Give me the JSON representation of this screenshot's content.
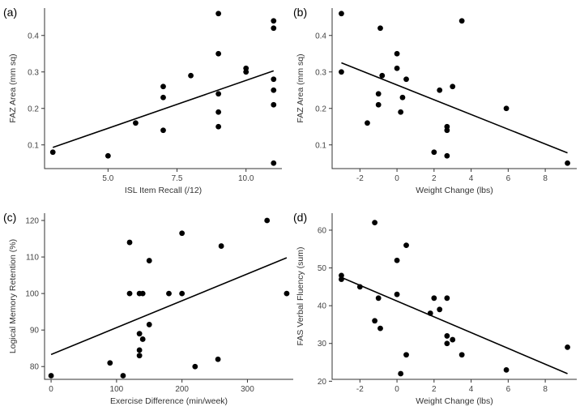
{
  "chart_data": [
    {
      "type": "scatter",
      "label": "(a)",
      "xlabel": "ISL Item Recall (/12)",
      "ylabel": "FAZ Area (mm sq)",
      "xlim": [
        2.7,
        11.3
      ],
      "ylim": [
        0.035,
        0.475
      ],
      "xticks": [
        5.0,
        7.5,
        10.0
      ],
      "xtick_labels": [
        "5.0",
        "7.5",
        "10.0"
      ],
      "yticks": [
        0.1,
        0.2,
        0.3,
        0.4
      ],
      "ytick_labels": [
        "0.1",
        "0.2",
        "0.3",
        "0.4"
      ],
      "points": [
        [
          3,
          0.08
        ],
        [
          5,
          0.07
        ],
        [
          6,
          0.16
        ],
        [
          7,
          0.26
        ],
        [
          7,
          0.23
        ],
        [
          7,
          0.14
        ],
        [
          8,
          0.29
        ],
        [
          9,
          0.46
        ],
        [
          9,
          0.35
        ],
        [
          9,
          0.24
        ],
        [
          9,
          0.19
        ],
        [
          9,
          0.15
        ],
        [
          10,
          0.31
        ],
        [
          10,
          0.3
        ],
        [
          11,
          0.44
        ],
        [
          11,
          0.42
        ],
        [
          11,
          0.28
        ],
        [
          11,
          0.25
        ],
        [
          11,
          0.21
        ],
        [
          11,
          0.05
        ]
      ],
      "fit": [
        [
          3,
          0.093
        ],
        [
          11,
          0.303
        ]
      ]
    },
    {
      "type": "scatter",
      "label": "(b)",
      "xlabel": "Weight Change (lbs)",
      "ylabel": "FAZ Area (mm sq)",
      "xlim": [
        -3.5,
        9.7
      ],
      "ylim": [
        0.035,
        0.475
      ],
      "xticks": [
        -2,
        0,
        2,
        4,
        6,
        8
      ],
      "xtick_labels": [
        "-2",
        "0",
        "2",
        "4",
        "6",
        "8"
      ],
      "yticks": [
        0.1,
        0.2,
        0.3,
        0.4
      ],
      "ytick_labels": [
        "0.1",
        "0.2",
        "0.3",
        "0.4"
      ],
      "points": [
        [
          -3,
          0.46
        ],
        [
          -3,
          0.3
        ],
        [
          -0.9,
          0.42
        ],
        [
          3.5,
          0.44
        ],
        [
          0,
          0.35
        ],
        [
          0,
          0.31
        ],
        [
          -0.8,
          0.29
        ],
        [
          0.5,
          0.28
        ],
        [
          3,
          0.26
        ],
        [
          2.3,
          0.25
        ],
        [
          -1,
          0.24
        ],
        [
          0.3,
          0.23
        ],
        [
          -1,
          0.21
        ],
        [
          5.9,
          0.2
        ],
        [
          0.2,
          0.19
        ],
        [
          -1.6,
          0.16
        ],
        [
          2.7,
          0.15
        ],
        [
          2.7,
          0.14
        ],
        [
          2,
          0.08
        ],
        [
          2.7,
          0.07
        ],
        [
          9.2,
          0.05
        ]
      ],
      "fit": [
        [
          -3,
          0.325
        ],
        [
          9.2,
          0.078
        ]
      ]
    },
    {
      "type": "scatter",
      "label": "(c)",
      "xlabel": "Exercise Difference (min/week)",
      "ylabel": "Logical Memory Retention (%)",
      "xlim": [
        -10,
        370
      ],
      "ylim": [
        76.5,
        122
      ],
      "xticks": [
        0,
        100,
        200,
        300
      ],
      "xtick_labels": [
        "0",
        "100",
        "200",
        "300"
      ],
      "yticks": [
        80,
        90,
        100,
        110,
        120
      ],
      "ytick_labels": [
        "80",
        "90",
        "100",
        "110",
        "120"
      ],
      "points": [
        [
          0,
          77.5
        ],
        [
          90,
          81
        ],
        [
          110,
          77.5
        ],
        [
          120,
          114
        ],
        [
          120,
          100
        ],
        [
          135,
          100
        ],
        [
          140,
          100
        ],
        [
          135,
          89
        ],
        [
          140,
          87.5
        ],
        [
          135,
          84.5
        ],
        [
          135,
          83
        ],
        [
          150,
          109
        ],
        [
          150,
          91.5
        ],
        [
          180,
          100
        ],
        [
          200,
          116.5
        ],
        [
          200,
          100
        ],
        [
          220,
          80
        ],
        [
          255,
          82
        ],
        [
          260,
          113
        ],
        [
          330,
          120
        ],
        [
          360,
          100
        ]
      ],
      "fit": [
        [
          0,
          83.3
        ],
        [
          360,
          109.8
        ]
      ]
    },
    {
      "type": "scatter",
      "label": "(d)",
      "xlabel": "Weight Change (lbs)",
      "ylabel": "FAS Verbal Fluency (sum)",
      "xlim": [
        -3.5,
        9.7
      ],
      "ylim": [
        20.5,
        64.5
      ],
      "xticks": [
        -2,
        0,
        2,
        4,
        6,
        8
      ],
      "xtick_labels": [
        "-2",
        "0",
        "2",
        "4",
        "6",
        "8"
      ],
      "yticks": [
        20,
        30,
        40,
        50,
        60
      ],
      "ytick_labels": [
        "20",
        "30",
        "40",
        "50",
        "60"
      ],
      "points": [
        [
          -3,
          48
        ],
        [
          -3,
          47
        ],
        [
          -2,
          45
        ],
        [
          -1.2,
          62
        ],
        [
          0.5,
          56
        ],
        [
          0,
          52
        ],
        [
          0,
          43
        ],
        [
          -1,
          42
        ],
        [
          -1.2,
          36
        ],
        [
          -0.9,
          34
        ],
        [
          1.8,
          38
        ],
        [
          2,
          42
        ],
        [
          2.7,
          42
        ],
        [
          2.3,
          39
        ],
        [
          2.7,
          32
        ],
        [
          3,
          31
        ],
        [
          2.7,
          30
        ],
        [
          0.5,
          27
        ],
        [
          3.5,
          27
        ],
        [
          5.9,
          23
        ],
        [
          0.2,
          22
        ],
        [
          9.2,
          29
        ]
      ],
      "fit": [
        [
          -3,
          47.5
        ],
        [
          9.2,
          22
        ]
      ]
    }
  ]
}
